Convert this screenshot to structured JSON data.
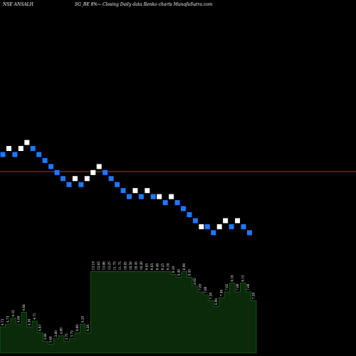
{
  "header": {
    "left": "NSE ANSALH",
    "middle": "SG_BE 8%~",
    "right": "Closing Daily data  Renko  charts MunafaSutra.com"
  },
  "chart_data": {
    "type": "renko",
    "reference_line_color": "#d2691e",
    "up_color": "#ffffff",
    "down_color": "#1e78ff",
    "bricks": [
      {
        "col": 0,
        "row": 0,
        "dir": "down"
      },
      {
        "col": 1,
        "row": 1,
        "dir": "up"
      },
      {
        "col": 2,
        "row": 0,
        "dir": "down"
      },
      {
        "col": 3,
        "row": 1,
        "dir": "up"
      },
      {
        "col": 4,
        "row": 2,
        "dir": "up"
      },
      {
        "col": 5,
        "row": 1,
        "dir": "down"
      },
      {
        "col": 6,
        "row": 0,
        "dir": "down"
      },
      {
        "col": 7,
        "row": -1,
        "dir": "down"
      },
      {
        "col": 8,
        "row": -2,
        "dir": "down"
      },
      {
        "col": 9,
        "row": -3,
        "dir": "down"
      },
      {
        "col": 10,
        "row": -4,
        "dir": "down"
      },
      {
        "col": 11,
        "row": -5,
        "dir": "down"
      },
      {
        "col": 12,
        "row": -4,
        "dir": "up"
      },
      {
        "col": 13,
        "row": -5,
        "dir": "down"
      },
      {
        "col": 14,
        "row": -4,
        "dir": "up"
      },
      {
        "col": 15,
        "row": -3,
        "dir": "up"
      },
      {
        "col": 16,
        "row": -2,
        "dir": "up"
      },
      {
        "col": 17,
        "row": -3,
        "dir": "down"
      },
      {
        "col": 18,
        "row": -4,
        "dir": "down"
      },
      {
        "col": 19,
        "row": -5,
        "dir": "down"
      },
      {
        "col": 20,
        "row": -6,
        "dir": "down"
      },
      {
        "col": 21,
        "row": -7,
        "dir": "down"
      },
      {
        "col": 22,
        "row": -6,
        "dir": "up"
      },
      {
        "col": 23,
        "row": -7,
        "dir": "down"
      },
      {
        "col": 24,
        "row": -6,
        "dir": "up"
      },
      {
        "col": 25,
        "row": -7,
        "dir": "down"
      },
      {
        "col": 26,
        "row": -7,
        "dir": "up"
      },
      {
        "col": 27,
        "row": -8,
        "dir": "down"
      },
      {
        "col": 28,
        "row": -7,
        "dir": "up"
      },
      {
        "col": 29,
        "row": -8,
        "dir": "down"
      },
      {
        "col": 30,
        "row": -9,
        "dir": "down"
      },
      {
        "col": 31,
        "row": -10,
        "dir": "down"
      },
      {
        "col": 32,
        "row": -11,
        "dir": "down"
      },
      {
        "col": 33,
        "row": -12,
        "dir": "up"
      },
      {
        "col": 34,
        "row": -12,
        "dir": "down"
      },
      {
        "col": 35,
        "row": -13,
        "dir": "down"
      },
      {
        "col": 36,
        "row": -12,
        "dir": "up"
      },
      {
        "col": 37,
        "row": -11,
        "dir": "up"
      },
      {
        "col": 38,
        "row": -12,
        "dir": "down"
      },
      {
        "col": 39,
        "row": -11,
        "dir": "up"
      },
      {
        "col": 40,
        "row": -12,
        "dir": "down"
      },
      {
        "col": 41,
        "row": -13,
        "dir": "down"
      }
    ],
    "volume_color": "#0a2a0a",
    "volume_line_color": "#1f7a1f",
    "volume": [
      {
        "v": 9,
        "label": "4.73"
      },
      {
        "v": 10,
        "label": "4.73"
      },
      {
        "v": 12,
        "label": "4.33"
      },
      {
        "v": 10,
        "label": "4.60"
      },
      {
        "v": 14,
        "label": "4.66"
      },
      {
        "v": 9,
        "label": "4.36"
      },
      {
        "v": 11,
        "label": "4.71"
      },
      {
        "v": 7,
        "label": "4.03"
      },
      {
        "v": 4,
        "label": "3.60"
      },
      {
        "v": 3,
        "label": "3.40"
      },
      {
        "v": 5,
        "label": "3.80"
      },
      {
        "v": 6,
        "label": "4.00"
      },
      {
        "v": 4,
        "label": "3.75"
      },
      {
        "v": 5,
        "label": "3.72"
      },
      {
        "v": 7,
        "label": "4.00"
      },
      {
        "v": 10,
        "label": "4.25"
      },
      {
        "v": 7,
        "label": "4.28"
      },
      {
        "v": 28,
        "label": "13.19"
      },
      {
        "v": 28,
        "label": "12.63"
      },
      {
        "v": 28,
        "label": "13.00"
      },
      {
        "v": 28,
        "label": "12.25"
      },
      {
        "v": 28,
        "label": "11.75"
      },
      {
        "v": 28,
        "label": "11.75"
      },
      {
        "v": 28,
        "label": "10.85"
      },
      {
        "v": 28,
        "label": "10.50"
      },
      {
        "v": 28,
        "label": "10.45"
      },
      {
        "v": 28,
        "label": "10.20"
      },
      {
        "v": 28,
        "label": "9.85"
      },
      {
        "v": 28,
        "label": "9.65"
      },
      {
        "v": 28,
        "label": "9.40"
      },
      {
        "v": 28,
        "label": "9.25"
      },
      {
        "v": 28,
        "label": "9.10"
      },
      {
        "v": 27,
        "label": "9.10"
      },
      {
        "v": 26,
        "label": "8.48"
      },
      {
        "v": 28,
        "label": "8.90"
      },
      {
        "v": 26,
        "label": "8.45"
      },
      {
        "v": 23,
        "label": "8.05"
      },
      {
        "v": 21,
        "label": "7.85"
      },
      {
        "v": 20,
        "label": "7.60"
      },
      {
        "v": 18,
        "label": "7.20"
      },
      {
        "v": 16,
        "label": "6.98"
      },
      {
        "v": 19,
        "label": "7.40"
      },
      {
        "v": 21,
        "label": "7.65"
      },
      {
        "v": 24,
        "label": "8.10"
      },
      {
        "v": 21,
        "label": "7.80"
      },
      {
        "v": 24,
        "label": "8.15"
      },
      {
        "v": 21,
        "label": "7.60"
      },
      {
        "v": 18,
        "label": "7.20"
      }
    ]
  }
}
